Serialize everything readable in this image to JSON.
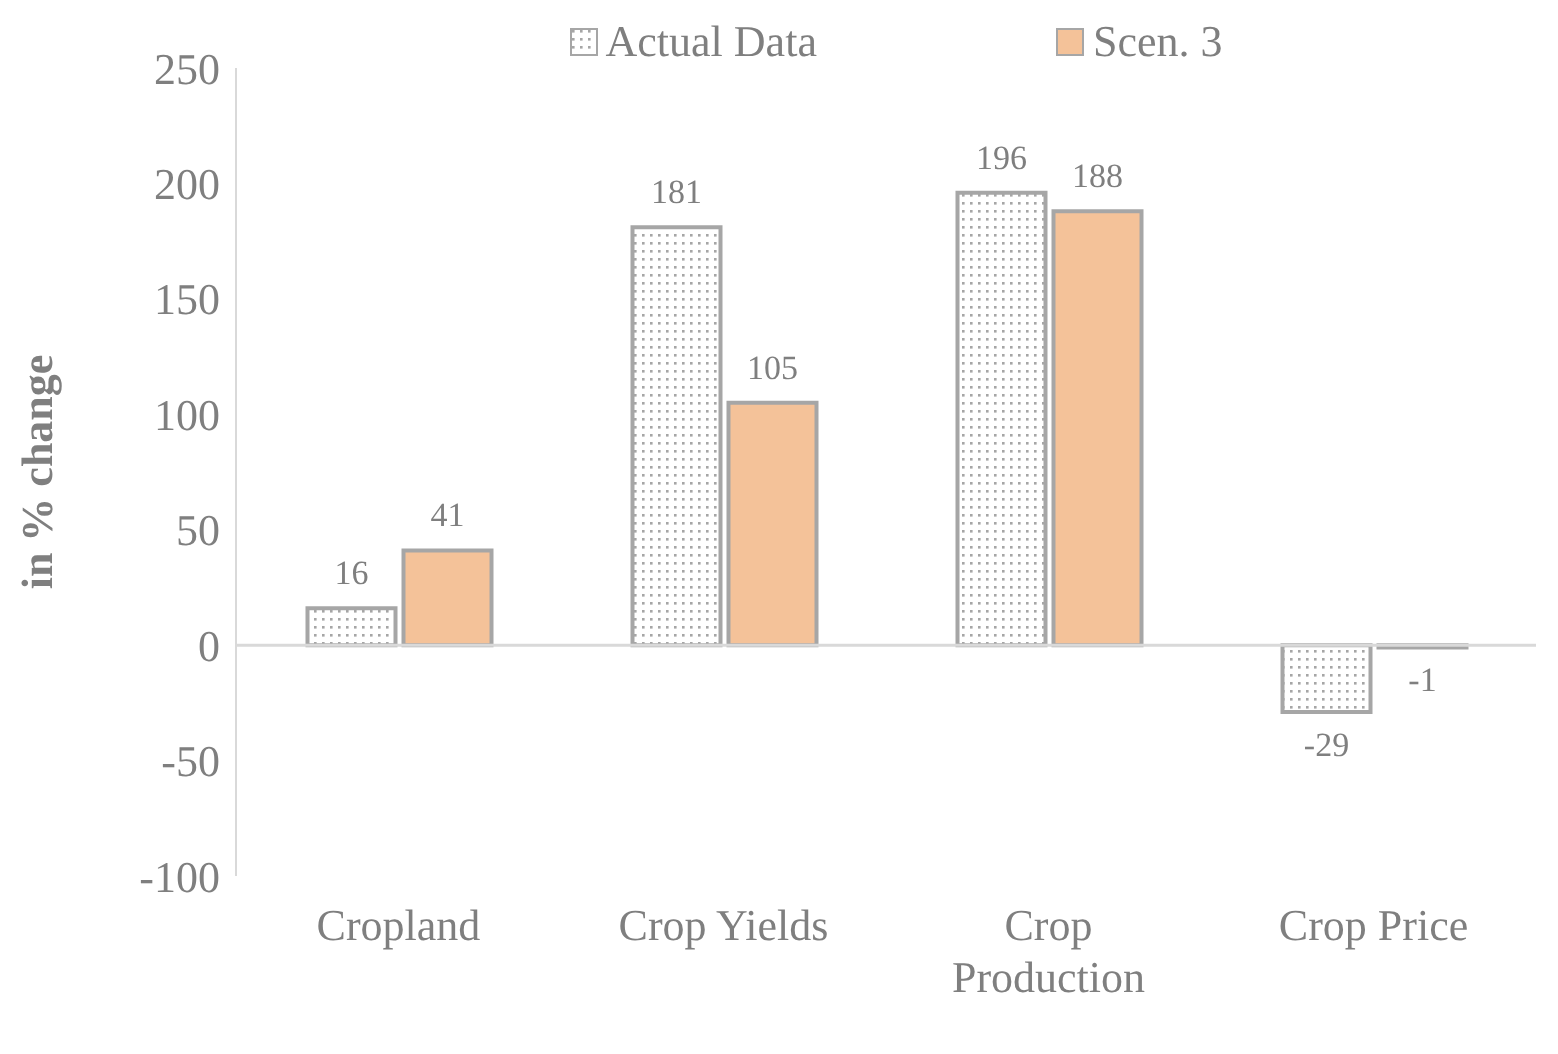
{
  "chart_data": {
    "type": "bar",
    "ylabel": "in % change",
    "categories": [
      "Cropland",
      "Crop Yields",
      "Crop Production",
      "Crop Price"
    ],
    "series": [
      {
        "name": "Actual Data",
        "color": "#a6a6a6",
        "values": [
          16,
          181,
          196,
          -29
        ]
      },
      {
        "name": "Scen. 3",
        "color": "#f4c299",
        "values": [
          41,
          105,
          188,
          -1
        ]
      }
    ],
    "ylim": [
      -100,
      250
    ],
    "yticks": [
      -100,
      -50,
      0,
      50,
      100,
      150,
      200,
      250
    ],
    "legend": "top",
    "data_labels": true
  }
}
